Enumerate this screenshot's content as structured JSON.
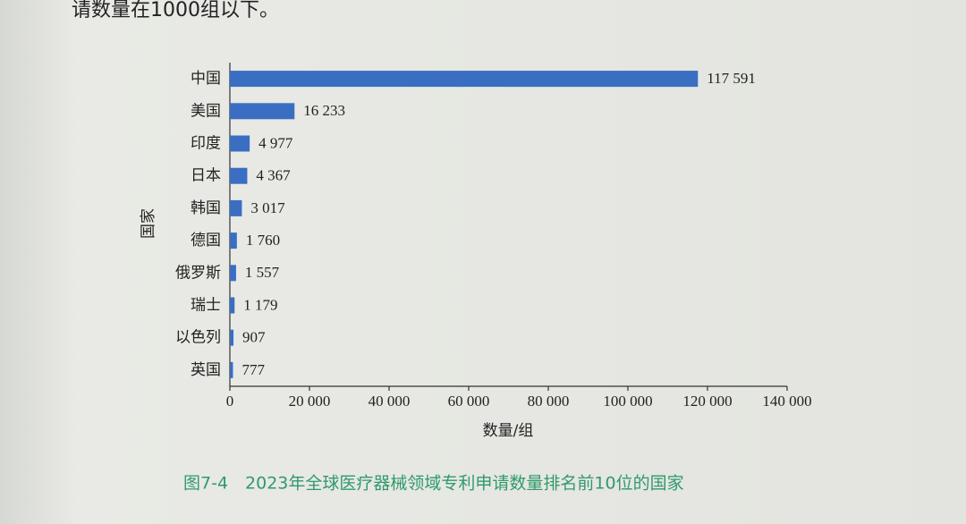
{
  "body_text": "请数量在1000组以下。",
  "chart_data": {
    "type": "bar",
    "orientation": "horizontal",
    "title": "图7-4　2023年全球医疗器械领域专利申请数量排名前10位的国家",
    "x_label": "数量/组",
    "y_label": "国家",
    "categories": [
      "中国",
      "美国",
      "印度",
      "日本",
      "韩国",
      "德国",
      "俄罗斯",
      "瑞士",
      "以色列",
      "英国"
    ],
    "values": [
      117591,
      16233,
      4977,
      4367,
      3017,
      1760,
      1557,
      1179,
      907,
      777
    ],
    "value_labels": [
      "117 591",
      "16 233",
      "4 977",
      "4 367",
      "3 017",
      "1 760",
      "1 557",
      "1 179",
      "907",
      "777"
    ],
    "color": "#3a6ec2",
    "xlim": [
      0,
      140000
    ],
    "xticks": [
      0,
      {
        "value": 20000,
        "label": "20 000"
      },
      {
        "value": 40000,
        "label": "40 000"
      },
      {
        "value": 60000,
        "label": "60 000"
      },
      {
        "value": 80000,
        "label": "80 000"
      },
      {
        "value": 100000,
        "label": "100 000"
      },
      {
        "value": 120000,
        "label": "120 000"
      },
      {
        "value": 140000,
        "label": "140 000"
      }
    ],
    "grid": false
  }
}
